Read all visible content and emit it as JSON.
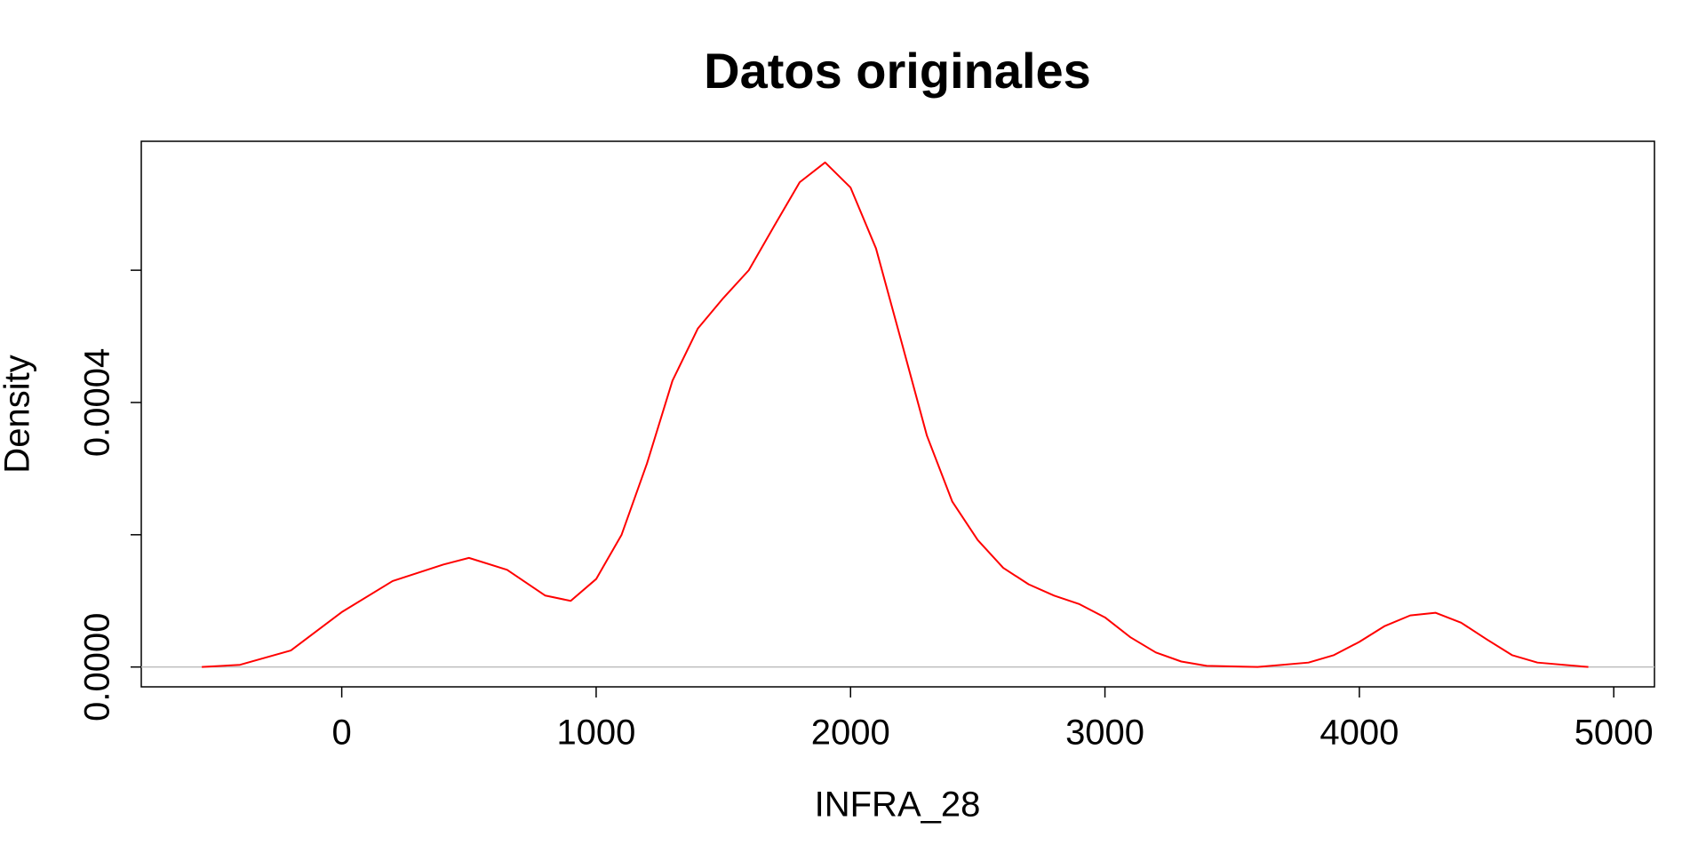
{
  "chart_data": {
    "type": "line",
    "title": "Datos originales",
    "x_label": "INFRA_28",
    "y_label": "Density",
    "x": [
      -550,
      -400,
      -200,
      0,
      200,
      400,
      500,
      650,
      800,
      900,
      1000,
      1100,
      1200,
      1300,
      1400,
      1500,
      1600,
      1700,
      1800,
      1900,
      2000,
      2100,
      2200,
      2300,
      2400,
      2500,
      2600,
      2700,
      2800,
      2900,
      3000,
      3100,
      3200,
      3300,
      3400,
      3600,
      3800,
      3900,
      4000,
      4100,
      4200,
      4300,
      4400,
      4500,
      4600,
      4700,
      4900
    ],
    "values": [
      0,
      3.3e-06,
      2.5e-05,
      8.3e-05,
      0.00013,
      0.000155,
      0.000165,
      0.000147,
      0.000108,
      0.0001,
      0.000133,
      0.0002,
      0.000308,
      0.000433,
      0.000512,
      0.000558,
      0.0006,
      0.000667,
      0.000733,
      0.000763,
      0.000725,
      0.000633,
      0.000492,
      0.00035,
      0.00025,
      0.000192,
      0.00015,
      0.000125,
      0.000108,
      9.5e-05,
      7.5e-05,
      4.5e-05,
      2.2e-05,
      8.3e-06,
      1.7e-06,
      0,
      6.7e-06,
      1.8e-05,
      3.8e-05,
      6.2e-05,
      7.8e-05,
      8.2e-05,
      6.7e-05,
      4.2e-05,
      1.8e-05,
      6.7e-06,
      0
    ],
    "color": "#ff0000",
    "xlim": [
      -788,
      5160
    ],
    "xticks": [
      0,
      1000,
      2000,
      3000,
      4000,
      5000
    ],
    "ylim": [
      -3e-05,
      0.000795
    ],
    "yticks": [
      {
        "value": 0,
        "label": "0.0000"
      },
      {
        "value": 0.0004,
        "label": "0.0004"
      }
    ],
    "yminorticks": [
      0.0002,
      0.0006
    ],
    "zero_line": true,
    "zero_line_color": "#bebebe"
  }
}
